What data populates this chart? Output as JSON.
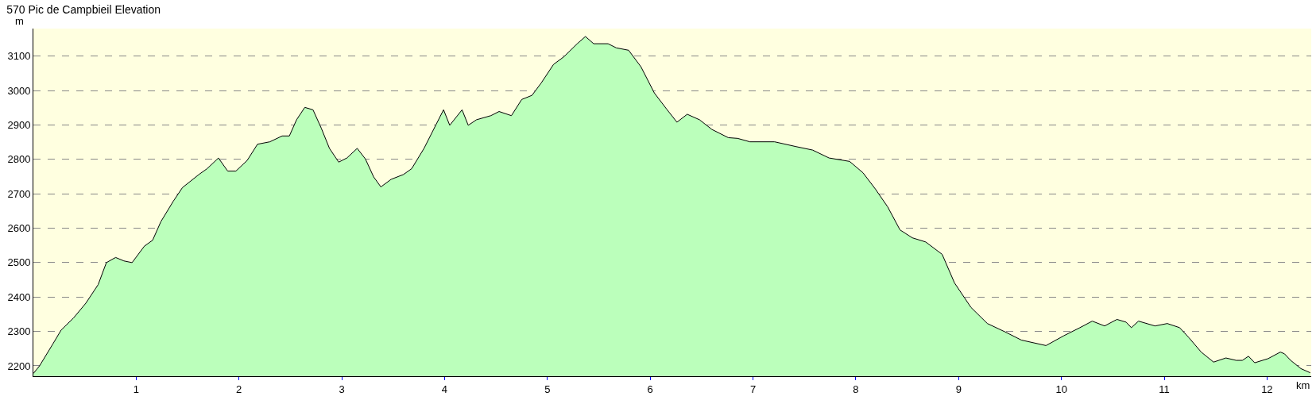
{
  "chart_data": {
    "type": "area",
    "title": "570 Pic de Campbieil Elevation",
    "xlabel": "km",
    "ylabel": "m",
    "x": [
      0,
      0.06,
      0.19,
      0.27,
      0.39,
      0.51,
      0.63,
      0.71,
      0.8,
      0.88,
      0.96,
      1.08,
      1.16,
      1.24,
      1.36,
      1.45,
      1.53,
      1.61,
      1.69,
      1.8,
      1.89,
      1.97,
      2.08,
      2.18,
      2.3,
      2.42,
      2.49,
      2.56,
      2.64,
      2.72,
      2.8,
      2.88,
      2.97,
      3.05,
      3.15,
      3.23,
      3.31,
      3.38,
      3.48,
      3.6,
      3.68,
      3.8,
      3.92,
      3.99,
      4.05,
      4.17,
      4.23,
      4.31,
      4.45,
      4.53,
      4.65,
      4.75,
      4.85,
      4.94,
      5.06,
      5.16,
      5.29,
      5.37,
      5.45,
      5.59,
      5.67,
      5.79,
      5.91,
      6.04,
      6.16,
      6.26,
      6.36,
      6.48,
      6.6,
      6.76,
      6.85,
      6.97,
      7.21,
      7.42,
      7.58,
      7.74,
      7.94,
      8.07,
      8.19,
      8.31,
      8.43,
      8.55,
      8.68,
      8.84,
      8.96,
      9.12,
      9.28,
      9.45,
      9.61,
      9.85,
      10.02,
      10.18,
      10.3,
      10.42,
      10.54,
      10.63,
      10.68,
      10.75,
      10.91,
      11.03,
      11.15,
      11.24,
      11.36,
      11.48,
      11.6,
      11.7,
      11.76,
      11.82,
      11.88,
      12.01,
      12.13,
      12.17,
      12.23,
      12.33,
      12.42
    ],
    "series": [
      {
        "color": "#bbffbb",
        "values": [
          2178,
          2200,
          2264,
          2304,
          2339,
          2382,
          2436,
          2500,
          2515,
          2505,
          2500,
          2548,
          2565,
          2619,
          2678,
          2718,
          2737,
          2756,
          2773,
          2804,
          2766,
          2766,
          2797,
          2844,
          2851,
          2868,
          2868,
          2915,
          2951,
          2944,
          2891,
          2832,
          2792,
          2804,
          2832,
          2801,
          2749,
          2720,
          2742,
          2756,
          2773,
          2832,
          2903,
          2944,
          2899,
          2944,
          2899,
          2915,
          2927,
          2939,
          2927,
          2974,
          2986,
          3022,
          3076,
          3098,
          3136,
          3157,
          3136,
          3136,
          3124,
          3117,
          3069,
          2993,
          2946,
          2908,
          2931,
          2915,
          2887,
          2863,
          2861,
          2851,
          2851,
          2837,
          2827,
          2804,
          2794,
          2761,
          2714,
          2662,
          2595,
          2572,
          2560,
          2524,
          2441,
          2370,
          2323,
          2299,
          2275,
          2259,
          2287,
          2311,
          2330,
          2316,
          2335,
          2327,
          2311,
          2330,
          2316,
          2323,
          2311,
          2282,
          2240,
          2211,
          2223,
          2216,
          2216,
          2228,
          2209,
          2221,
          2240,
          2235,
          2216,
          2192,
          2180
        ]
      }
    ],
    "xlim": [
      0,
      12.43
    ],
    "ylim": [
      2170,
      3180
    ],
    "xticks": [
      1,
      2,
      3,
      4,
      5,
      6,
      7,
      8,
      9,
      10,
      11,
      12
    ],
    "yticks": [
      2200,
      2300,
      2400,
      2500,
      2600,
      2700,
      2800,
      2900,
      3000,
      3100
    ],
    "grid": "y",
    "legend": false,
    "line_style": "solid"
  }
}
